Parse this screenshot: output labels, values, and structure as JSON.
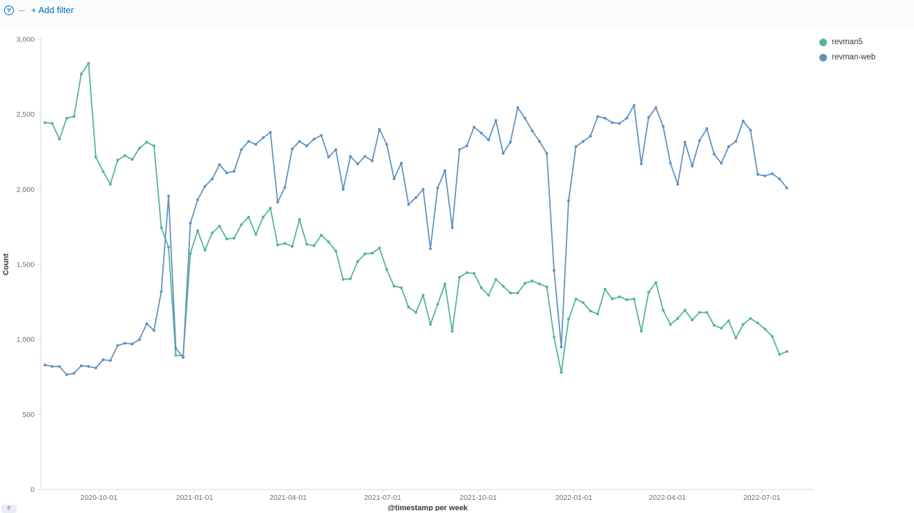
{
  "filter_bar": {
    "add_filter_label": "+ Add filter",
    "filter_icon": "filter-icon"
  },
  "colors": {
    "revman5": "#54b399",
    "revman-web": "#6092c0"
  },
  "chart_data": {
    "type": "line",
    "xlabel": "@timestamp per week",
    "ylabel": "Count",
    "ylim": [
      0,
      3000
    ],
    "yticks": [
      0,
      500,
      1000,
      1500,
      2000,
      2500,
      3000
    ],
    "ytick_labels": [
      "0",
      "500",
      "1,000",
      "1,500",
      "2,000",
      "2,500",
      "3,000"
    ],
    "xlim": [
      "2020-08-06",
      "2022-08-20"
    ],
    "xticks": [
      "2020-10-01",
      "2021-01-01",
      "2021-04-01",
      "2021-07-01",
      "2021-10-01",
      "2022-01-01",
      "2022-04-01",
      "2022-07-01"
    ],
    "legend_position": "top-right",
    "grid": false,
    "x_start": "2020-08-10",
    "x_step_days": 7,
    "series": [
      {
        "name": "revman5",
        "color": "#54b399",
        "values": [
          2445,
          2440,
          2335,
          2475,
          2485,
          2770,
          2840,
          2215,
          2120,
          2035,
          2195,
          2225,
          2200,
          2275,
          2315,
          2290,
          1745,
          1615,
          895,
          890,
          1575,
          1725,
          1595,
          1710,
          1755,
          1670,
          1675,
          1765,
          1815,
          1700,
          1815,
          1875,
          1630,
          1640,
          1620,
          1800,
          1635,
          1625,
          1695,
          1650,
          1590,
          1400,
          1405,
          1520,
          1570,
          1575,
          1610,
          1465,
          1355,
          1345,
          1215,
          1180,
          1295,
          1100,
          1235,
          1370,
          1055,
          1415,
          1445,
          1440,
          1345,
          1295,
          1400,
          1355,
          1310,
          1310,
          1375,
          1390,
          1370,
          1350,
          1015,
          780,
          1135,
          1270,
          1245,
          1190,
          1170,
          1335,
          1270,
          1285,
          1265,
          1270,
          1055,
          1315,
          1380,
          1195,
          1100,
          1140,
          1195,
          1130,
          1180,
          1180,
          1095,
          1075,
          1125,
          1010,
          1100,
          1140,
          1110,
          1070,
          1020,
          900,
          920
        ]
      },
      {
        "name": "revman-web",
        "color": "#6092c0",
        "values": [
          830,
          820,
          820,
          765,
          775,
          825,
          820,
          810,
          865,
          860,
          960,
          975,
          970,
          1000,
          1105,
          1060,
          1320,
          1955,
          940,
          880,
          1775,
          1930,
          2020,
          2070,
          2165,
          2110,
          2120,
          2265,
          2320,
          2300,
          2345,
          2380,
          1915,
          2015,
          2270,
          2320,
          2290,
          2335,
          2360,
          2215,
          2265,
          2000,
          2220,
          2170,
          2220,
          2190,
          2400,
          2300,
          2070,
          2175,
          1900,
          1945,
          2000,
          1605,
          2010,
          2125,
          1745,
          2265,
          2290,
          2415,
          2375,
          2330,
          2460,
          2240,
          2315,
          2545,
          2475,
          2390,
          2320,
          2240,
          1460,
          950,
          1925,
          2285,
          2320,
          2355,
          2485,
          2475,
          2445,
          2440,
          2475,
          2560,
          2170,
          2480,
          2545,
          2420,
          2175,
          2035,
          2315,
          2155,
          2325,
          2405,
          2235,
          2175,
          2285,
          2320,
          2455,
          2395,
          2100,
          2090,
          2105,
          2070,
          2010
        ]
      }
    ]
  }
}
